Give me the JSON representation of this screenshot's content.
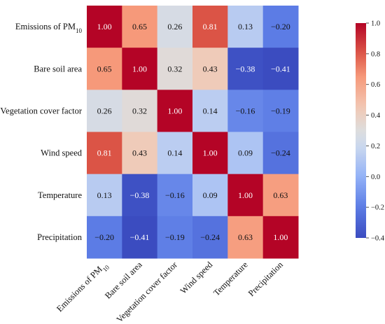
{
  "chart_data": {
    "type": "heatmap",
    "row_labels": [
      {
        "text": "Emissions of PM",
        "sub": "10"
      },
      {
        "text": "Bare soil area",
        "sub": ""
      },
      {
        "text": "Vegetation cover factor",
        "sub": ""
      },
      {
        "text": "Wind speed",
        "sub": ""
      },
      {
        "text": "Temperature",
        "sub": ""
      },
      {
        "text": "Precipitation",
        "sub": ""
      }
    ],
    "col_labels": [
      {
        "text": "Emissions of PM",
        "sub": "10"
      },
      {
        "text": "Bare soil area",
        "sub": ""
      },
      {
        "text": "Vegetation cover factor",
        "sub": ""
      },
      {
        "text": "Wind speed",
        "sub": ""
      },
      {
        "text": "Temperature",
        "sub": ""
      },
      {
        "text": "Precipitation",
        "sub": ""
      }
    ],
    "values": [
      [
        1.0,
        0.65,
        0.26,
        0.81,
        0.13,
        -0.2
      ],
      [
        0.65,
        1.0,
        0.32,
        0.43,
        -0.38,
        -0.41
      ],
      [
        0.26,
        0.32,
        1.0,
        0.14,
        -0.16,
        -0.19
      ],
      [
        0.81,
        0.43,
        0.14,
        1.0,
        0.09,
        -0.24
      ],
      [
        0.13,
        -0.38,
        -0.16,
        0.09,
        1.0,
        0.63
      ],
      [
        -0.2,
        -0.41,
        -0.19,
        -0.24,
        0.63,
        1.0
      ]
    ],
    "value_labels": [
      [
        "1.00",
        "0.65",
        "0.26",
        "0.81",
        "0.13",
        "−0.20"
      ],
      [
        "0.65",
        "1.00",
        "0.32",
        "0.43",
        "−0.38",
        "−0.41"
      ],
      [
        "0.26",
        "0.32",
        "1.00",
        "0.14",
        "−0.16",
        "−0.19"
      ],
      [
        "0.81",
        "0.43",
        "0.14",
        "1.00",
        "0.09",
        "−0.24"
      ],
      [
        "0.13",
        "−0.38",
        "−0.16",
        "0.09",
        "1.00",
        "0.63"
      ],
      [
        "−0.20",
        "−0.41",
        "−0.19",
        "−0.24",
        "0.63",
        "1.00"
      ]
    ],
    "colorbar": {
      "range": [
        -0.4,
        1.0
      ],
      "ticks": [
        "1.0",
        "0.8",
        "0.6",
        "0.4",
        "0.2",
        "0.0",
        "−0.2",
        "−0.4"
      ],
      "tick_values": [
        1.0,
        0.8,
        0.6,
        0.4,
        0.2,
        0.0,
        -0.2,
        -0.4
      ],
      "colormap": "coolwarm"
    },
    "colors": {
      "low": "#3b4cc0",
      "mid": "#dddddd",
      "high": "#b40426"
    }
  }
}
